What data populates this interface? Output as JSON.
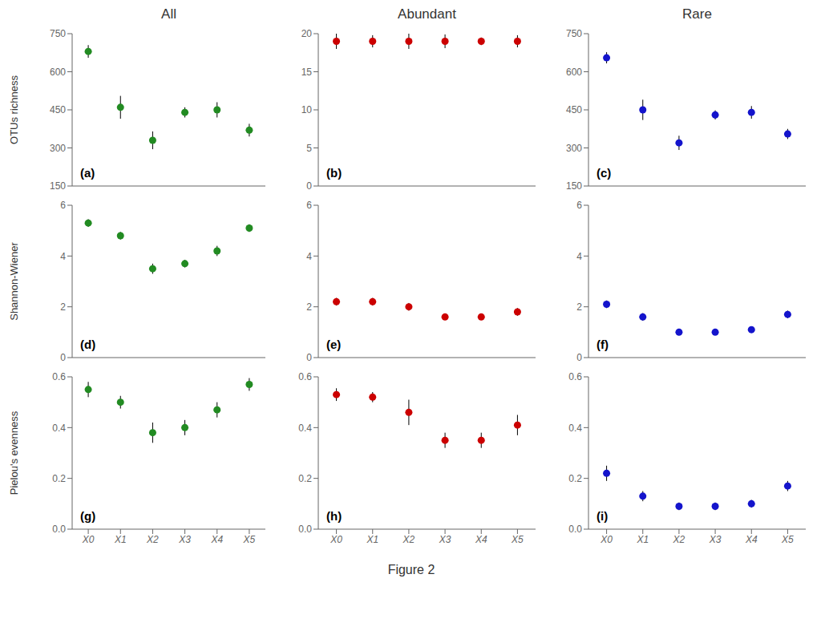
{
  "caption": "Figure 2",
  "chart_data": [
    {
      "type": "scatter",
      "title": "All",
      "y_label": "OTUs richness",
      "categories": [
        "X0",
        "X1",
        "X2",
        "X3",
        "X4",
        "X5"
      ],
      "series": [
        {
          "color": "#228B22",
          "marker": "circle",
          "values": [
            680,
            460,
            330,
            440,
            450,
            370
          ],
          "yerr": [
            25,
            45,
            35,
            20,
            30,
            25
          ]
        }
      ],
      "ylim": [
        150,
        750
      ],
      "yticks": [
        150,
        300,
        450,
        600,
        750
      ],
      "tick_labels": "y",
      "annotations": [
        {
          "text": "(a)"
        }
      ]
    },
    {
      "type": "scatter",
      "title": "Abundant",
      "categories": [
        "X0",
        "X1",
        "X2",
        "X3",
        "X4",
        "X5"
      ],
      "series": [
        {
          "color": "#CC0000",
          "marker": "circle",
          "values": [
            19,
            19,
            19,
            19,
            19,
            19
          ],
          "yerr": [
            1.0,
            0.8,
            1.0,
            0.9,
            0.5,
            0.8
          ]
        }
      ],
      "ylim": [
        0,
        20
      ],
      "yticks": [
        0,
        5,
        10,
        15,
        20
      ],
      "tick_labels": "y",
      "annotations": [
        {
          "text": "(b)"
        }
      ]
    },
    {
      "type": "scatter",
      "title": "Rare",
      "categories": [
        "X0",
        "X1",
        "X2",
        "X3",
        "X4",
        "X5"
      ],
      "series": [
        {
          "color": "#1414CC",
          "marker": "circle",
          "values": [
            655,
            450,
            320,
            430,
            440,
            355
          ],
          "yerr": [
            22,
            40,
            28,
            18,
            25,
            20
          ]
        }
      ],
      "ylim": [
        150,
        750
      ],
      "yticks": [
        150,
        300,
        450,
        600,
        750
      ],
      "tick_labels": "y",
      "annotations": [
        {
          "text": "(c)"
        }
      ]
    },
    {
      "type": "scatter",
      "y_label": "Shannon-Wiener",
      "categories": [
        "X0",
        "X1",
        "X2",
        "X3",
        "X4",
        "X5"
      ],
      "series": [
        {
          "color": "#228B22",
          "marker": "circle",
          "values": [
            5.3,
            4.8,
            3.5,
            3.7,
            4.2,
            5.1
          ],
          "yerr": [
            0.15,
            0.15,
            0.2,
            0.15,
            0.2,
            0.15
          ]
        }
      ],
      "ylim": [
        0,
        6
      ],
      "yticks": [
        0,
        2,
        4,
        6
      ],
      "tick_labels": "y",
      "annotations": [
        {
          "text": "(d)"
        }
      ]
    },
    {
      "type": "scatter",
      "categories": [
        "X0",
        "X1",
        "X2",
        "X3",
        "X4",
        "X5"
      ],
      "series": [
        {
          "color": "#CC0000",
          "marker": "circle",
          "values": [
            2.2,
            2.2,
            2.0,
            1.6,
            1.6,
            1.8
          ],
          "yerr": [
            0.15,
            0.15,
            0.15,
            0.12,
            0.12,
            0.15
          ]
        }
      ],
      "ylim": [
        0,
        6
      ],
      "yticks": [
        0,
        2,
        4,
        6
      ],
      "tick_labels": "y",
      "annotations": [
        {
          "text": "(e)"
        }
      ]
    },
    {
      "type": "scatter",
      "categories": [
        "X0",
        "X1",
        "X2",
        "X3",
        "X4",
        "X5"
      ],
      "series": [
        {
          "color": "#1414CC",
          "marker": "circle",
          "values": [
            2.1,
            1.6,
            1.0,
            1.0,
            1.1,
            1.7
          ],
          "yerr": [
            0.15,
            0.15,
            0.12,
            0.1,
            0.1,
            0.15
          ]
        }
      ],
      "ylim": [
        0,
        6
      ],
      "yticks": [
        0,
        2,
        4,
        6
      ],
      "tick_labels": "y",
      "annotations": [
        {
          "text": "(f)"
        }
      ]
    },
    {
      "type": "scatter",
      "y_label": "Pielou's evenness",
      "categories": [
        "X0",
        "X1",
        "X2",
        "X3",
        "X4",
        "X5"
      ],
      "series": [
        {
          "color": "#228B22",
          "marker": "circle",
          "values": [
            0.55,
            0.5,
            0.38,
            0.4,
            0.47,
            0.57
          ],
          "yerr": [
            0.03,
            0.025,
            0.04,
            0.03,
            0.03,
            0.025
          ]
        }
      ],
      "ylim": [
        0,
        0.6
      ],
      "yticks": [
        {
          "value": 0,
          "label": "0.0"
        },
        0.2,
        0.4,
        0.6
      ],
      "annotations": [
        {
          "text": "(g)"
        }
      ]
    },
    {
      "type": "scatter",
      "categories": [
        "X0",
        "X1",
        "X2",
        "X3",
        "X4",
        "X5"
      ],
      "series": [
        {
          "color": "#CC0000",
          "marker": "circle",
          "values": [
            0.53,
            0.52,
            0.46,
            0.35,
            0.35,
            0.41
          ],
          "yerr": [
            0.025,
            0.02,
            0.05,
            0.03,
            0.03,
            0.04
          ]
        }
      ],
      "ylim": [
        0,
        0.6
      ],
      "yticks": [
        {
          "value": 0,
          "label": "0.0"
        },
        0.2,
        0.4,
        0.6
      ],
      "annotations": [
        {
          "text": "(h)"
        }
      ]
    },
    {
      "type": "scatter",
      "categories": [
        "X0",
        "X1",
        "X2",
        "X3",
        "X4",
        "X5"
      ],
      "series": [
        {
          "color": "#1414CC",
          "marker": "circle",
          "values": [
            0.22,
            0.13,
            0.09,
            0.09,
            0.1,
            0.17
          ],
          "yerr": [
            0.03,
            0.02,
            0.015,
            0.015,
            0.015,
            0.02
          ]
        }
      ],
      "ylim": [
        0,
        0.6
      ],
      "yticks": [
        {
          "value": 0,
          "label": "0.0"
        },
        0.2,
        0.4,
        0.6
      ],
      "annotations": [
        {
          "text": "(i)"
        }
      ]
    }
  ]
}
